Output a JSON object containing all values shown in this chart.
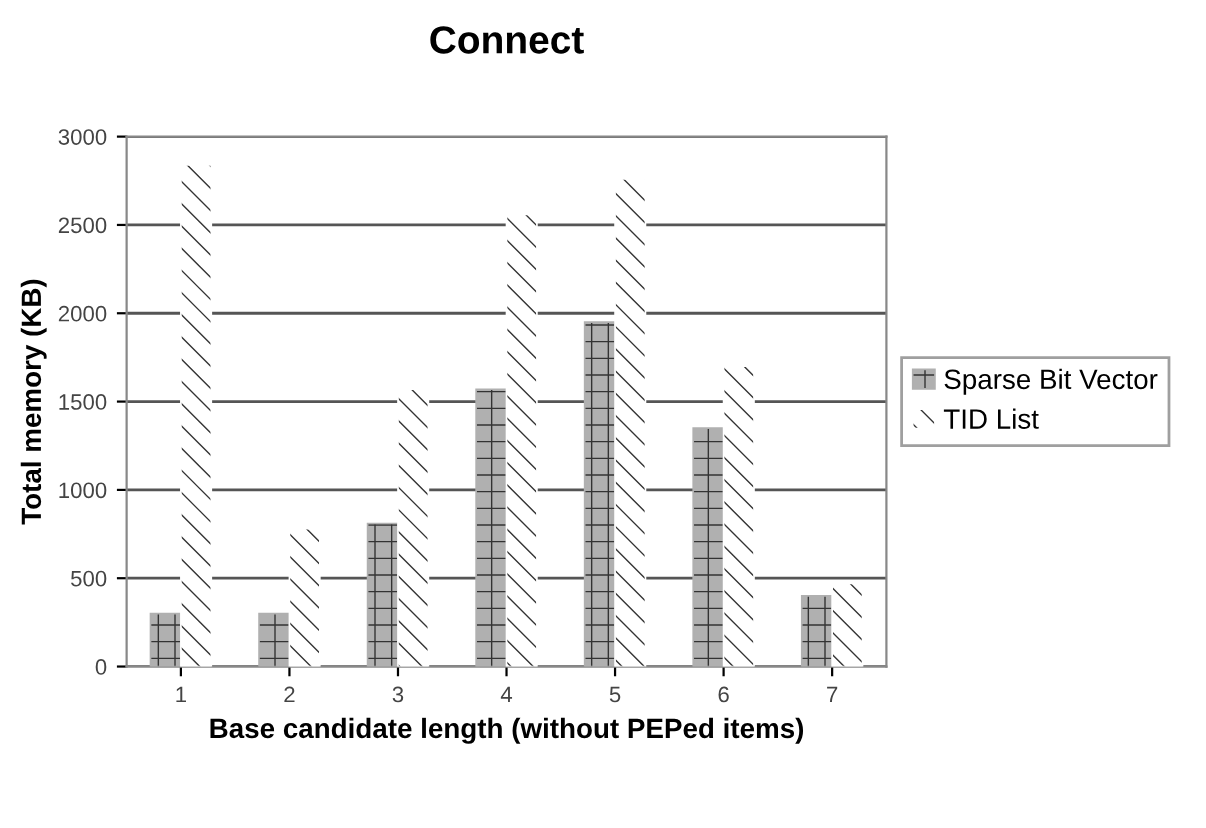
{
  "chart_data": {
    "type": "bar",
    "title": "Connect",
    "xlabel": "Base candidate length (without PEPed items)",
    "ylabel": "Total memory (KB)",
    "categories": [
      "1",
      "2",
      "3",
      "4",
      "5",
      "6",
      "7"
    ],
    "series": [
      {
        "name": "Sparse Bit Vector",
        "color": "#b0b0b0",
        "values": [
          300,
          300,
          810,
          1570,
          1950,
          1350,
          400
        ]
      },
      {
        "name": "TID List",
        "color": "#ffffff",
        "values": [
          2840,
          780,
          1570,
          2560,
          2760,
          1700,
          470
        ]
      }
    ],
    "ylim": [
      0,
      3000
    ],
    "yticks": [
      0,
      500,
      1000,
      1500,
      2000,
      2500,
      3000
    ],
    "grid": "y",
    "legend": "right"
  }
}
